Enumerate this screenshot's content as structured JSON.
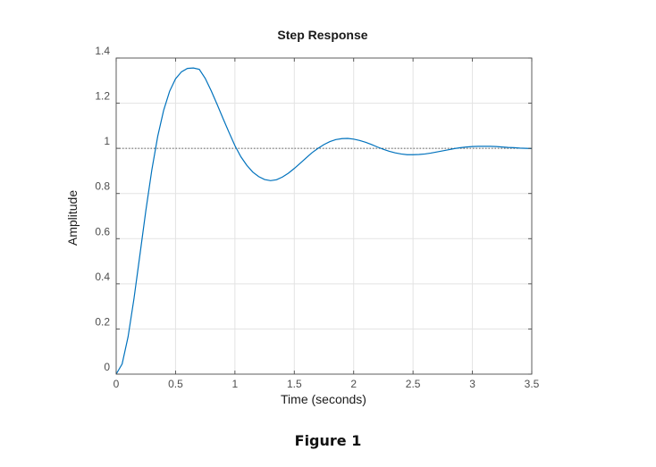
{
  "figure_caption": "Figure 1",
  "chart_data": {
    "type": "line",
    "title": "Step Response",
    "xlabel": "Time (seconds)",
    "ylabel": "Amplitude",
    "xlim": [
      0,
      3.5
    ],
    "ylim": [
      0,
      1.4
    ],
    "xticks": [
      0,
      0.5,
      1,
      1.5,
      2,
      2.5,
      3,
      3.5
    ],
    "xtick_labels": [
      "0",
      "0.5",
      "1",
      "1.5",
      "2",
      "2.5",
      "3",
      "3.5"
    ],
    "yticks": [
      0,
      0.2,
      0.4,
      0.6,
      0.8,
      1,
      1.2,
      1.4
    ],
    "ytick_labels": [
      "0",
      "0.2",
      "0.4",
      "0.6",
      "0.8",
      "1",
      "1.2",
      "1.4"
    ],
    "grid": true,
    "reference_line": {
      "y": 1,
      "style": "dotted"
    },
    "series": [
      {
        "color": "#0072bd",
        "x": [
          0,
          0.05,
          0.1,
          0.15,
          0.2,
          0.25,
          0.3,
          0.35,
          0.4,
          0.45,
          0.5,
          0.55,
          0.6,
          0.65,
          0.7,
          0.75,
          0.8,
          0.85,
          0.9,
          0.95,
          1.0,
          1.05,
          1.1,
          1.15,
          1.2,
          1.25,
          1.3,
          1.35,
          1.4,
          1.45,
          1.5,
          1.55,
          1.6,
          1.65,
          1.7,
          1.75,
          1.8,
          1.85,
          1.9,
          1.95,
          2.0,
          2.05,
          2.1,
          2.15,
          2.2,
          2.25,
          2.3,
          2.35,
          2.4,
          2.45,
          2.5,
          2.55,
          2.6,
          2.65,
          2.7,
          2.75,
          2.8,
          2.85,
          2.9,
          2.95,
          3.0,
          3.05,
          3.1,
          3.15,
          3.2,
          3.25,
          3.3,
          3.35,
          3.4,
          3.45,
          3.5
        ],
        "y": [
          0,
          0.045,
          0.165,
          0.335,
          0.529,
          0.725,
          0.904,
          1.054,
          1.169,
          1.253,
          1.308,
          1.339,
          1.354,
          1.356,
          1.35,
          1.31,
          1.255,
          1.195,
          1.132,
          1.071,
          1.012,
          0.963,
          0.925,
          0.895,
          0.875,
          0.862,
          0.857,
          0.861,
          0.873,
          0.89,
          0.911,
          0.934,
          0.958,
          0.981,
          1.0,
          1.017,
          1.03,
          1.039,
          1.043,
          1.044,
          1.041,
          1.035,
          1.027,
          1.017,
          1.006,
          0.996,
          0.987,
          0.98,
          0.975,
          0.972,
          0.972,
          0.973,
          0.975,
          0.979,
          0.984,
          0.989,
          0.994,
          0.999,
          1.003,
          1.006,
          1.008,
          1.009,
          1.009,
          1.009,
          1.008,
          1.006,
          1.004,
          1.003,
          1.001,
          1.0,
          0.999
        ]
      }
    ]
  }
}
